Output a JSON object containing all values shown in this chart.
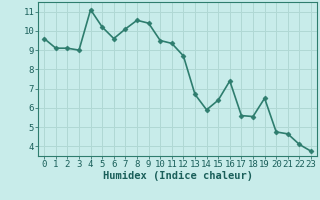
{
  "x": [
    0,
    1,
    2,
    3,
    4,
    5,
    6,
    7,
    8,
    9,
    10,
    11,
    12,
    13,
    14,
    15,
    16,
    17,
    18,
    19,
    20,
    21,
    22,
    23
  ],
  "y": [
    9.6,
    9.1,
    9.1,
    9.0,
    11.1,
    10.2,
    9.6,
    10.1,
    10.55,
    10.4,
    9.5,
    9.35,
    8.7,
    6.7,
    5.9,
    6.4,
    7.4,
    5.6,
    5.55,
    6.5,
    4.75,
    4.65,
    4.1,
    3.75
  ],
  "line_color": "#2e7d6e",
  "bg_color": "#c8ecea",
  "grid_color": "#b0d8d4",
  "xlabel": "Humidex (Indice chaleur)",
  "ylim": [
    3.5,
    11.5
  ],
  "xlim": [
    -0.5,
    23.5
  ],
  "yticks": [
    4,
    5,
    6,
    7,
    8,
    9,
    10,
    11
  ],
  "xticks": [
    0,
    1,
    2,
    3,
    4,
    5,
    6,
    7,
    8,
    9,
    10,
    11,
    12,
    13,
    14,
    15,
    16,
    17,
    18,
    19,
    20,
    21,
    22,
    23
  ],
  "marker": "D",
  "markersize": 2.5,
  "linewidth": 1.2,
  "tick_fontsize": 6.5,
  "xlabel_fontsize": 7.5
}
